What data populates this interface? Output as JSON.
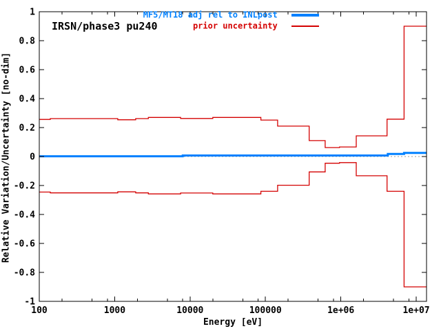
{
  "chart_data": {
    "type": "line",
    "plot_label": "IRSN/phase3 pu240",
    "xlabel": "Energy [eV]",
    "ylabel": "Relative Variation/Uncertainty [no-dim]",
    "x_scale": "log",
    "xlim": [
      100,
      13700000
    ],
    "ylim": [
      -1,
      1
    ],
    "grid": false,
    "background_color": "#ffffff",
    "axis_color": "#000000",
    "x_major_ticks": [
      {
        "value": 100,
        "label": "100"
      },
      {
        "value": 1000,
        "label": "1000"
      },
      {
        "value": 10000,
        "label": "10000"
      },
      {
        "value": 100000,
        "label": "100000"
      },
      {
        "value": 1000000,
        "label": "1e+06"
      },
      {
        "value": 10000000,
        "label": "1e+07"
      }
    ],
    "x_minor_tick_multiples": [
      2,
      5,
      8
    ],
    "y_ticks": [
      {
        "value": 1,
        "label": "1"
      },
      {
        "value": 0.8,
        "label": "0.8"
      },
      {
        "value": 0.6,
        "label": "0.6"
      },
      {
        "value": 0.4,
        "label": "0.4"
      },
      {
        "value": 0.2,
        "label": "0.2"
      },
      {
        "value": 0,
        "label": "0"
      },
      {
        "value": -0.2,
        "label": "-0.2"
      },
      {
        "value": -0.4,
        "label": "-0.4"
      },
      {
        "value": -0.6,
        "label": "-0.6"
      },
      {
        "value": -0.8,
        "label": "-0.8"
      },
      {
        "value": -1,
        "label": "-1"
      }
    ],
    "zero_line": {
      "value": 0,
      "color": "#999999",
      "style": "dotted"
    },
    "legend": {
      "position": "top-right-inside",
      "entries": [
        {
          "label": "MF5/MT18 adj rel to INLpost",
          "color": "#0080ff",
          "sample_thickness": 4
        },
        {
          "label": "prior uncertainty",
          "color": "#d40000",
          "sample_thickness": 2
        }
      ]
    },
    "series": [
      {
        "name": "MF5/MT18 adj rel to INLpost",
        "color": "#0080ff",
        "line_width": 3,
        "mode": "steps",
        "points": [
          [
            100,
            0.002
          ],
          [
            8000,
            0.007
          ],
          [
            4200000,
            0.018
          ],
          [
            6900000,
            0.025
          ]
        ]
      },
      {
        "name": "prior uncertainty (upper)",
        "color": "#d40000",
        "line_width": 1.3,
        "mode": "steps",
        "points": [
          [
            100,
            0.256
          ],
          [
            140,
            0.262
          ],
          [
            1100,
            0.254
          ],
          [
            1900,
            0.262
          ],
          [
            2800,
            0.27
          ],
          [
            7500,
            0.263
          ],
          [
            20000,
            0.27
          ],
          [
            87000,
            0.252
          ],
          [
            145000,
            0.21
          ],
          [
            380000,
            0.11
          ],
          [
            620000,
            0.062
          ],
          [
            960000,
            0.066
          ],
          [
            1600000,
            0.143
          ],
          [
            4100000,
            0.258
          ],
          [
            6900000,
            0.9
          ]
        ]
      },
      {
        "name": "prior uncertainty (lower)",
        "color": "#d40000",
        "line_width": 1.3,
        "mode": "steps",
        "points": [
          [
            100,
            -0.245
          ],
          [
            140,
            -0.251
          ],
          [
            1100,
            -0.244
          ],
          [
            1900,
            -0.251
          ],
          [
            2800,
            -0.258
          ],
          [
            7500,
            -0.252
          ],
          [
            20000,
            -0.258
          ],
          [
            87000,
            -0.24
          ],
          [
            145000,
            -0.198
          ],
          [
            380000,
            -0.106
          ],
          [
            620000,
            -0.046
          ],
          [
            960000,
            -0.042
          ],
          [
            1600000,
            -0.133
          ],
          [
            4100000,
            -0.24
          ],
          [
            6900000,
            -0.9
          ]
        ]
      }
    ]
  }
}
